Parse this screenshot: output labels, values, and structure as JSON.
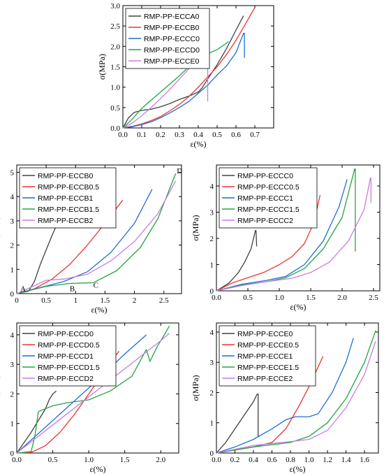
{
  "chart_data": [
    {
      "type": "line",
      "title": "",
      "xlabel": "ε(%)",
      "ylabel": "σ(MPa)",
      "xlim": [
        0,
        0.8
      ],
      "ylim": [
        0,
        3
      ],
      "xticks": [
        "0.0",
        "0.1",
        "0.2",
        "0.3",
        "0.4",
        "0.5",
        "0.6",
        "0.7"
      ],
      "yticks": [
        "0.0",
        "0.5",
        "1.0",
        "1.5",
        "2.0",
        "2.5",
        "3.0"
      ],
      "x_tick_values": [
        0,
        0.1,
        0.2,
        0.3,
        0.4,
        0.5,
        0.6,
        0.7
      ],
      "y_tick_values": [
        0,
        0.5,
        1,
        1.5,
        2,
        2.5,
        3
      ],
      "legend": "top-left",
      "annotations": [],
      "series": [
        {
          "name": "RMP-PP-ECCA0",
          "color": "#404040",
          "x": [
            0,
            0.03,
            0.06,
            0.1,
            0.15,
            0.2,
            0.25,
            0.3,
            0.35,
            0.4,
            0.42,
            0.45,
            0.5,
            0.55,
            0.6,
            0.64
          ],
          "y": [
            0,
            0.25,
            0.38,
            0.43,
            0.46,
            0.52,
            0.6,
            0.7,
            0.78,
            0.88,
            0.98,
            1.2,
            1.55,
            1.95,
            2.4,
            2.75
          ]
        },
        {
          "name": "RMP-PP-ECCB0",
          "color": "#ee3333",
          "x": [
            0,
            0.05,
            0.1,
            0.15,
            0.2,
            0.25,
            0.3,
            0.35,
            0.4,
            0.45,
            0.5,
            0.55,
            0.6,
            0.65,
            0.7
          ],
          "y": [
            0,
            0.04,
            0.1,
            0.18,
            0.28,
            0.42,
            0.58,
            0.77,
            1.0,
            1.25,
            1.5,
            1.8,
            2.15,
            2.55,
            2.95
          ]
        },
        {
          "name": "RMP-PP-ECCC0",
          "color": "#1f6fd1",
          "x": [
            0,
            0.05,
            0.1,
            0.15,
            0.2,
            0.25,
            0.3,
            0.35,
            0.4,
            0.45,
            0.5,
            0.55,
            0.6,
            0.64,
            0.645,
            0.645
          ],
          "y": [
            0,
            0.03,
            0.08,
            0.15,
            0.25,
            0.37,
            0.5,
            0.65,
            0.85,
            1.05,
            1.3,
            1.52,
            1.85,
            2.32,
            2.32,
            1.72
          ]
        },
        {
          "name": "RMP-PP-ECCD0",
          "color": "#22a543",
          "x": [
            0,
            0.05,
            0.1,
            0.15,
            0.2,
            0.25,
            0.3,
            0.35,
            0.4,
            0.45,
            0.5,
            0.55,
            0.56
          ],
          "y": [
            0,
            0.22,
            0.48,
            0.68,
            0.88,
            1.08,
            1.28,
            1.5,
            1.68,
            1.82,
            1.92,
            2.08,
            2.12
          ]
        },
        {
          "name": "RMP-PP-ECCE0",
          "color": "#c77de6",
          "x": [
            0,
            0.05,
            0.1,
            0.15,
            0.2,
            0.25,
            0.3,
            0.35,
            0.4,
            0.44,
            0.45,
            0.45
          ],
          "y": [
            0,
            0.12,
            0.3,
            0.5,
            0.72,
            0.95,
            1.2,
            1.45,
            1.72,
            1.95,
            1.95,
            0.65
          ]
        }
      ]
    },
    {
      "type": "line",
      "title": "",
      "xlabel": "ε(%)",
      "ylabel": "σ(MPa)",
      "xlim": [
        0,
        2.8
      ],
      "ylim": [
        0,
        5.3
      ],
      "xticks": [
        "0",
        "0.5",
        "1",
        "1.5",
        "2",
        "2.5"
      ],
      "yticks": [
        "0",
        "1",
        "2",
        "3",
        "4",
        "5"
      ],
      "x_tick_values": [
        0,
        0.5,
        1,
        1.5,
        2,
        2.5
      ],
      "y_tick_values": [
        0,
        1,
        2,
        3,
        4,
        5
      ],
      "legend": "top-left",
      "annotations": [
        {
          "text": "A",
          "x": 0.06,
          "y": 0.1
        },
        {
          "text": "B",
          "x": 0.9,
          "y": 0.1
        },
        {
          "text": "C",
          "x": 1.3,
          "y": 0.25
        },
        {
          "text": "D",
          "x": 2.72,
          "y": 4.95
        }
      ],
      "series": [
        {
          "name": "RMP-PP-ECCB0",
          "color": "#404040",
          "x": [
            0,
            0.2,
            0.3,
            0.4,
            0.5,
            0.6,
            0.7
          ],
          "y": [
            0,
            0.1,
            0.5,
            1.2,
            1.8,
            2.4,
            2.95
          ]
        },
        {
          "name": "RMP-PP-ECCB0.5",
          "color": "#ee3333",
          "x": [
            0,
            0.3,
            0.6,
            0.9,
            1.2,
            1.5,
            1.8
          ],
          "y": [
            0,
            0.2,
            0.6,
            1.2,
            2.0,
            2.9,
            3.85
          ]
        },
        {
          "name": "RMP-PP-ECCB1",
          "color": "#1f6fd1",
          "x": [
            0,
            0.4,
            0.8,
            1.2,
            1.6,
            2.0,
            2.3
          ],
          "y": [
            0,
            0.25,
            0.5,
            0.9,
            1.7,
            2.9,
            4.3
          ]
        },
        {
          "name": "RMP-PP-ECCB1.5",
          "color": "#22a543",
          "x": [
            0,
            0.5,
            0.9,
            1.3,
            1.7,
            2.1,
            2.4,
            2.7
          ],
          "y": [
            0,
            0.3,
            0.42,
            0.45,
            0.95,
            1.9,
            3.1,
            4.95
          ]
        },
        {
          "name": "RMP-PP-ECCB2",
          "color": "#c77de6",
          "x": [
            0,
            0.5,
            0.8,
            1.2,
            1.6,
            2.0,
            2.4,
            2.7
          ],
          "y": [
            0,
            0.55,
            0.6,
            0.8,
            1.35,
            2.15,
            3.3,
            4.65
          ]
        }
      ]
    },
    {
      "type": "line",
      "title": "",
      "xlabel": "ε(%)",
      "ylabel": "σ(MPa)",
      "xlim": [
        0,
        2.6
      ],
      "ylim": [
        0,
        4.8
      ],
      "xticks": [
        "0.0",
        "0.5",
        "1.0",
        "1.5",
        "2.0",
        "2.5"
      ],
      "yticks": [
        "0",
        "1",
        "2",
        "3",
        "4"
      ],
      "x_tick_values": [
        0,
        0.5,
        1,
        1.5,
        2,
        2.5
      ],
      "y_tick_values": [
        0,
        1,
        2,
        3,
        4
      ],
      "legend": "top-left",
      "annotations": [],
      "series": [
        {
          "name": "RMP-PP-ECCC0",
          "color": "#404040",
          "x": [
            0,
            0.2,
            0.35,
            0.45,
            0.55,
            0.62,
            0.63,
            0.64
          ],
          "y": [
            0,
            0.3,
            0.7,
            1.1,
            1.6,
            2.3,
            2.3,
            1.7
          ]
        },
        {
          "name": "RMP-PP-ECCC0.5",
          "color": "#ee3333",
          "x": [
            0,
            0.25,
            0.5,
            0.75,
            1.0,
            1.2,
            1.4,
            1.55,
            1.65
          ],
          "y": [
            0,
            0.3,
            0.5,
            0.7,
            1.0,
            1.3,
            1.8,
            2.6,
            3.65
          ]
        },
        {
          "name": "RMP-PP-ECCC1",
          "color": "#1f6fd1",
          "x": [
            0,
            0.4,
            0.8,
            1.1,
            1.4,
            1.7,
            1.95,
            2.08
          ],
          "y": [
            0,
            0.25,
            0.4,
            0.55,
            1.0,
            1.9,
            3.2,
            4.25
          ]
        },
        {
          "name": "RMP-PP-ECCC1.5",
          "color": "#22a543",
          "x": [
            0,
            0.4,
            0.8,
            1.1,
            1.4,
            1.7,
            2.0,
            2.2,
            2.21,
            2.21
          ],
          "y": [
            0,
            0.22,
            0.35,
            0.5,
            0.85,
            1.6,
            2.8,
            4.65,
            4.65,
            1.5
          ]
        },
        {
          "name": "RMP-PP-ECCC2",
          "color": "#c77de6",
          "x": [
            0,
            0.4,
            0.8,
            1.2,
            1.5,
            1.8,
            2.1,
            2.35,
            2.45,
            2.46,
            2.46
          ],
          "y": [
            0,
            0.2,
            0.35,
            0.48,
            0.7,
            1.1,
            1.9,
            3.1,
            4.3,
            4.3,
            3.35
          ]
        }
      ]
    },
    {
      "type": "line",
      "title": "",
      "xlabel": "ε(%)",
      "ylabel": "σ(MPa)",
      "xlim": [
        0,
        2.25
      ],
      "ylim": [
        0,
        4.4
      ],
      "xticks": [
        "0.0",
        "0.5",
        "1.0",
        "1.5",
        "2.0"
      ],
      "yticks": [
        "0",
        "1",
        "2",
        "3",
        "4"
      ],
      "x_tick_values": [
        0,
        0.5,
        1,
        1.5,
        2
      ],
      "y_tick_values": [
        0,
        1,
        2,
        3,
        4
      ],
      "legend": "top-left",
      "annotations": [],
      "series": [
        {
          "name": "RMP-PP-ECCD0",
          "color": "#404040",
          "x": [
            0,
            0.1,
            0.2,
            0.3,
            0.4,
            0.45,
            0.5,
            0.55
          ],
          "y": [
            0,
            0.35,
            0.7,
            1.1,
            1.5,
            1.8,
            2.0,
            2.1
          ]
        },
        {
          "name": "RMP-PP-ECCD0.5",
          "color": "#ee3333",
          "x": [
            0,
            0.2,
            0.4,
            0.6,
            0.8,
            1.0,
            1.2,
            1.42
          ],
          "y": [
            0,
            0.02,
            0.25,
            0.7,
            1.3,
            2.0,
            2.7,
            3.45
          ]
        },
        {
          "name": "RMP-PP-ECCD1",
          "color": "#1f6fd1",
          "x": [
            0,
            0.5,
            1.0,
            1.5,
            1.8
          ],
          "y": [
            0,
            1.1,
            2.2,
            3.35,
            4.0
          ]
        },
        {
          "name": "RMP-PP-ECCD1.5",
          "color": "#22a543",
          "x": [
            0,
            0.2,
            0.25,
            0.3,
            0.5,
            0.7,
            1.0,
            1.3,
            1.6,
            1.8,
            1.85,
            1.95,
            2.05,
            2.12
          ],
          "y": [
            0,
            0.05,
            0.55,
            1.4,
            1.6,
            1.7,
            1.8,
            2.1,
            2.6,
            3.5,
            3.1,
            3.6,
            4.0,
            4.3
          ]
        },
        {
          "name": "RMP-PP-ECCD2",
          "color": "#c77de6",
          "x": [
            0,
            0.5,
            1.0,
            1.5,
            2.0,
            2.12
          ],
          "y": [
            0,
            0.95,
            1.9,
            2.85,
            3.8,
            4.05
          ]
        }
      ]
    },
    {
      "type": "line",
      "title": "",
      "xlabel": "ε(%)",
      "ylabel": "σ(MPa)",
      "xlim": [
        0,
        1.75
      ],
      "ylim": [
        0,
        4.3
      ],
      "xticks": [
        "0.0",
        "0.2",
        "0.4",
        "0.6",
        "0.8",
        "1.0",
        "1.2",
        "1.4",
        "1.6"
      ],
      "yticks": [
        "0",
        "1",
        "2",
        "3",
        "4"
      ],
      "x_tick_values": [
        0,
        0.2,
        0.4,
        0.6,
        0.8,
        1.0,
        1.2,
        1.4,
        1.6
      ],
      "y_tick_values": [
        0,
        1,
        2,
        3,
        4
      ],
      "legend": "top-left",
      "annotations": [],
      "series": [
        {
          "name": "RMP-PP-ECCE0",
          "color": "#404040",
          "x": [
            0,
            0.1,
            0.2,
            0.3,
            0.4,
            0.44,
            0.45,
            0.45
          ],
          "y": [
            0,
            0.35,
            0.8,
            1.25,
            1.7,
            1.95,
            1.95,
            0.55
          ]
        },
        {
          "name": "RMP-PP-ECCE0.5",
          "color": "#ee3333",
          "x": [
            0,
            0.2,
            0.4,
            0.6,
            0.75,
            0.9,
            1.0,
            1.1,
            1.15
          ],
          "y": [
            0,
            0.1,
            0.2,
            0.35,
            0.8,
            1.6,
            2.2,
            2.85,
            3.2
          ]
        },
        {
          "name": "RMP-PP-ECCE1",
          "color": "#1f6fd1",
          "x": [
            0,
            0.2,
            0.4,
            0.6,
            0.75,
            0.85,
            1.0,
            1.1,
            1.25,
            1.4,
            1.48
          ],
          "y": [
            0,
            0.2,
            0.45,
            0.8,
            1.1,
            1.2,
            1.2,
            1.3,
            2.0,
            3.0,
            3.8
          ]
        },
        {
          "name": "RMP-PP-ECCE1.5",
          "color": "#22a543",
          "x": [
            0,
            0.4,
            0.8,
            1.0,
            1.2,
            1.4,
            1.6,
            1.72
          ],
          "y": [
            0,
            0.2,
            0.35,
            0.55,
            1.0,
            1.8,
            3.0,
            4.05
          ]
        },
        {
          "name": "RMP-PP-ECCE2",
          "color": "#c77de6",
          "x": [
            0,
            0.4,
            0.8,
            1.0,
            1.2,
            1.4,
            1.6,
            1.72
          ],
          "y": [
            0,
            0.25,
            0.38,
            0.45,
            0.75,
            1.5,
            2.6,
            3.7
          ]
        }
      ]
    }
  ]
}
